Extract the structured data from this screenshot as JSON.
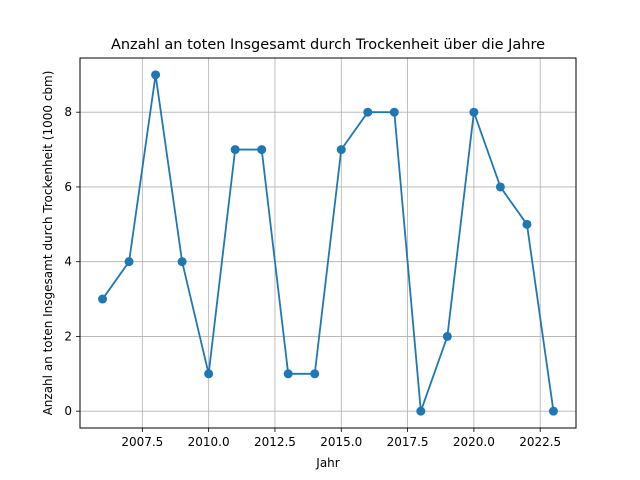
{
  "chart_data": {
    "type": "line",
    "title": "Anzahl an toten Insgesamt durch Trockenheit über die Jahre",
    "xlabel": "Jahr",
    "ylabel": "Anzahl an toten Insgesamt durch Trockenheit (1000 cbm)",
    "x": [
      2006,
      2007,
      2008,
      2009,
      2010,
      2011,
      2012,
      2013,
      2014,
      2015,
      2016,
      2017,
      2018,
      2019,
      2020,
      2021,
      2022,
      2023
    ],
    "series": [
      {
        "values": [
          3,
          4,
          9,
          4,
          1,
          7,
          7,
          1,
          1,
          7,
          8,
          8,
          0,
          2,
          8,
          6,
          5,
          0
        ]
      }
    ],
    "xlim": [
      2005.15,
      2023.85
    ],
    "ylim": [
      -0.45,
      9.45
    ],
    "xticks": [
      2007.5,
      2010.0,
      2012.5,
      2015.0,
      2017.5,
      2020.0,
      2022.5
    ],
    "xtick_labels": [
      "2007.5",
      "2010.0",
      "2012.5",
      "2015.0",
      "2017.5",
      "2020.0",
      "2022.5"
    ],
    "yticks": [
      0,
      2,
      4,
      6,
      8
    ],
    "ytick_labels": [
      "0",
      "2",
      "4",
      "6",
      "8"
    ],
    "grid": true,
    "line_color": "#1f77b4",
    "marker": "circle"
  }
}
